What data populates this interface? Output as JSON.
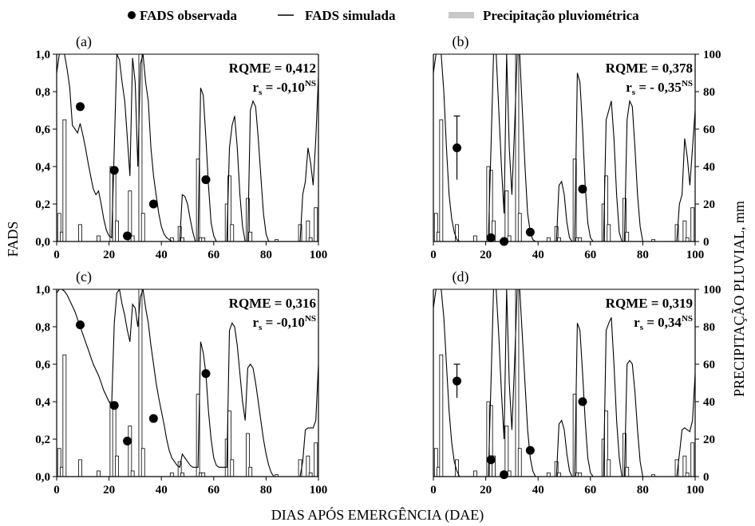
{
  "legend": {
    "observed": "FADS observada",
    "simulated": "FADS simulada",
    "precip": "Precipitação pluviométrica"
  },
  "axes": {
    "ylabel_left": "FADS",
    "ylabel_right": "PRECIPITAÇÃO PLUVIAL, mm",
    "xlabel": "DIAS APÓS EMERGÊNCIA (DAE)",
    "x_ticks": [
      "0",
      "20",
      "40",
      "60",
      "80",
      "100"
    ],
    "y_ticks_left": [
      "0,0",
      "0,2",
      "0,4",
      "0,6",
      "0,8",
      "1,0"
    ],
    "y_ticks_right": [
      "0",
      "20",
      "40",
      "60",
      "80",
      "100"
    ]
  },
  "chart_data": {
    "type": "line",
    "xlim": [
      0,
      100
    ],
    "ylim_left": [
      0,
      1.0
    ],
    "ylim_right": [
      0,
      100
    ],
    "precipitation": {
      "name": "Precipitação pluviométrica",
      "x": [
        1,
        2,
        3,
        9,
        16,
        21,
        22,
        23,
        28,
        29,
        32,
        33,
        44,
        47,
        48,
        54,
        55,
        56,
        65,
        66,
        67,
        73,
        74,
        84,
        93,
        96,
        97,
        99
      ],
      "mm": [
        15,
        5,
        65,
        9,
        3,
        40,
        38,
        11,
        27,
        3,
        100,
        15,
        2,
        8,
        2,
        44,
        2,
        2,
        20,
        35,
        9,
        23,
        5,
        1,
        9,
        11,
        2,
        18
      ]
    },
    "panels": [
      {
        "label": "(a)",
        "rqme": "RQME = 0,412",
        "rs_prefix": "r",
        "rs_sub": "s",
        "rs_value": " = -0,10",
        "rs_sup": "NS",
        "observed": {
          "x": [
            9,
            22,
            27,
            37,
            57
          ],
          "y": [
            0.72,
            0.38,
            0.03,
            0.2,
            0.33
          ],
          "err": [
            0,
            0,
            0,
            0,
            0
          ]
        },
        "simulated": {
          "x": [
            0,
            1,
            2,
            3,
            4,
            5,
            6,
            7,
            8,
            9,
            10,
            11,
            12,
            13,
            14,
            15,
            16,
            17,
            18,
            19,
            20,
            21,
            22,
            23,
            24,
            25,
            26,
            27,
            28,
            29,
            30,
            31,
            32,
            33,
            34,
            35,
            36,
            37,
            38,
            39,
            40,
            41,
            42,
            43,
            44,
            45,
            46,
            47,
            48,
            49,
            50,
            51,
            52,
            53,
            54,
            55,
            56,
            57,
            58,
            59,
            60,
            61,
            62,
            63,
            64,
            65,
            66,
            67,
            68,
            69,
            70,
            71,
            72,
            73,
            74,
            75,
            76,
            77,
            78,
            79,
            80,
            81,
            82,
            83,
            84,
            85,
            86,
            87,
            88,
            89,
            90,
            91,
            92,
            93,
            94,
            95,
            96,
            97,
            98,
            99,
            100
          ],
          "y": [
            0.9,
            1.0,
            1.0,
            1.0,
            0.92,
            0.82,
            0.62,
            0.6,
            0.58,
            0.63,
            0.57,
            0.5,
            0.42,
            0.35,
            0.28,
            0.25,
            0.27,
            0.2,
            0.12,
            0.06,
            0.03,
            0.02,
            0.5,
            1.0,
            0.97,
            0.85,
            0.75,
            0.55,
            0.35,
            0.98,
            0.85,
            0.4,
            0.95,
            1.0,
            0.85,
            0.75,
            0.5,
            0.35,
            0.25,
            0.15,
            0.08,
            0.04,
            0.02,
            0.01,
            0.0,
            0.0,
            0.0,
            0.0,
            0.25,
            0.24,
            0.2,
            0.12,
            0.05,
            0.0,
            0.0,
            0.82,
            0.78,
            0.55,
            0.3,
            0.1,
            0.03,
            0.0,
            0.0,
            0.0,
            0.0,
            0.0,
            0.5,
            0.62,
            0.67,
            0.5,
            0.25,
            0.08,
            0.0,
            0.0,
            0.7,
            0.75,
            0.72,
            0.55,
            0.35,
            0.15,
            0.04,
            0.0,
            0.0,
            0.0,
            0.0,
            0.0,
            0.0,
            0.0,
            0.0,
            0.0,
            0.0,
            0.0,
            0.0,
            0.0,
            0.25,
            0.32,
            0.5,
            0.42,
            0.3,
            0.55,
            0.88
          ]
        }
      },
      {
        "label": "(b)",
        "rqme": "RQME = 0,378",
        "rs_prefix": "r",
        "rs_sub": "s",
        "rs_value": " = - 0,35",
        "rs_sup": "NS",
        "observed": {
          "x": [
            9,
            22,
            27,
            37,
            57
          ],
          "y": [
            0.5,
            0.02,
            0.0,
            0.05,
            0.28
          ],
          "err": [
            0.17,
            0,
            0,
            0,
            0
          ]
        },
        "simulated": {
          "x": [
            0,
            1,
            2,
            3,
            4,
            5,
            6,
            7,
            8,
            9,
            10,
            11,
            12,
            13,
            14,
            15,
            16,
            17,
            18,
            19,
            20,
            21,
            22,
            23,
            24,
            25,
            26,
            27,
            28,
            29,
            30,
            31,
            32,
            33,
            34,
            35,
            36,
            37,
            38,
            39,
            40,
            41,
            42,
            43,
            44,
            45,
            46,
            47,
            48,
            49,
            50,
            51,
            52,
            53,
            54,
            55,
            56,
            57,
            58,
            59,
            60,
            61,
            62,
            63,
            64,
            65,
            66,
            67,
            68,
            69,
            70,
            71,
            72,
            73,
            74,
            75,
            76,
            77,
            78,
            79,
            80,
            81,
            82,
            83,
            84,
            85,
            86,
            87,
            88,
            89,
            90,
            91,
            92,
            93,
            94,
            95,
            96,
            97,
            98,
            99,
            100
          ],
          "y": [
            0.9,
            1.0,
            1.0,
            1.0,
            0.8,
            0.5,
            0.25,
            0.12,
            0.05,
            0.01,
            0.0,
            0.0,
            0.0,
            0.0,
            0.0,
            0.0,
            0.0,
            0.0,
            0.0,
            0.0,
            0.0,
            0.0,
            0.5,
            1.0,
            1.0,
            0.7,
            0.4,
            0.15,
            1.0,
            0.5,
            0.25,
            0.6,
            1.0,
            1.0,
            0.7,
            0.4,
            0.15,
            0.05,
            0.01,
            0.0,
            0.0,
            0.0,
            0.0,
            0.0,
            0.0,
            0.0,
            0.0,
            0.0,
            0.3,
            0.32,
            0.25,
            0.1,
            0.02,
            0.0,
            0.0,
            0.9,
            0.85,
            0.6,
            0.3,
            0.1,
            0.02,
            0.0,
            0.0,
            0.0,
            0.0,
            0.0,
            0.65,
            0.7,
            0.75,
            0.55,
            0.25,
            0.05,
            0.0,
            0.0,
            0.65,
            0.75,
            0.72,
            0.5,
            0.25,
            0.08,
            0.0,
            0.0,
            0.0,
            0.0,
            0.0,
            0.0,
            0.0,
            0.0,
            0.0,
            0.0,
            0.0,
            0.0,
            0.0,
            0.0,
            0.2,
            0.25,
            0.55,
            0.45,
            0.3,
            0.5,
            0.7
          ]
        }
      },
      {
        "label": "(c)",
        "rqme": "RQME = 0,316",
        "rs_prefix": "r",
        "rs_sub": "s",
        "rs_value": " = -0,10",
        "rs_sup": "NS",
        "observed": {
          "x": [
            9,
            22,
            27,
            37,
            57
          ],
          "y": [
            0.81,
            0.38,
            0.19,
            0.31,
            0.55
          ],
          "err": [
            0,
            0,
            0,
            0,
            0
          ]
        },
        "simulated": {
          "x": [
            0,
            1,
            2,
            3,
            4,
            5,
            6,
            7,
            8,
            9,
            10,
            11,
            12,
            13,
            14,
            15,
            16,
            17,
            18,
            19,
            20,
            21,
            22,
            23,
            24,
            25,
            26,
            27,
            28,
            29,
            30,
            31,
            32,
            33,
            34,
            35,
            36,
            37,
            38,
            39,
            40,
            41,
            42,
            43,
            44,
            45,
            46,
            47,
            48,
            49,
            50,
            51,
            52,
            53,
            54,
            55,
            56,
            57,
            58,
            59,
            60,
            61,
            62,
            63,
            64,
            65,
            66,
            67,
            68,
            69,
            70,
            71,
            72,
            73,
            74,
            75,
            76,
            77,
            78,
            79,
            80,
            81,
            82,
            83,
            84,
            85,
            86,
            87,
            88,
            89,
            90,
            91,
            92,
            93,
            94,
            95,
            96,
            97,
            98,
            99,
            100
          ],
          "y": [
            0.98,
            1.0,
            1.0,
            0.99,
            0.97,
            0.94,
            0.91,
            0.88,
            0.84,
            0.8,
            0.76,
            0.72,
            0.68,
            0.64,
            0.6,
            0.57,
            0.54,
            0.5,
            0.46,
            0.43,
            0.4,
            0.38,
            0.82,
            0.98,
            1.0,
            0.92,
            0.86,
            0.78,
            0.72,
            0.92,
            0.9,
            0.8,
            0.96,
            1.0,
            0.9,
            0.82,
            0.7,
            0.6,
            0.5,
            0.42,
            0.35,
            0.28,
            0.2,
            0.14,
            0.1,
            0.08,
            0.06,
            0.05,
            0.12,
            0.1,
            0.08,
            0.06,
            0.05,
            0.05,
            0.05,
            0.72,
            0.66,
            0.55,
            0.35,
            0.2,
            0.1,
            0.06,
            0.05,
            0.05,
            0.05,
            0.05,
            0.78,
            0.82,
            0.8,
            0.7,
            0.55,
            0.4,
            0.3,
            0.58,
            0.6,
            0.58,
            0.5,
            0.4,
            0.3,
            0.2,
            0.12,
            0.06,
            0.02,
            0.0,
            0.0,
            0.0,
            0.0,
            0.0,
            0.0,
            0.0,
            0.0,
            0.0,
            0.0,
            0.0,
            0.08,
            0.25,
            0.26,
            0.26,
            0.26,
            0.3,
            0.6
          ]
        }
      },
      {
        "label": "(d)",
        "rqme": "RQME = 0,319",
        "rs_prefix": "r",
        "rs_sub": "s",
        "rs_value": " = 0,34",
        "rs_sup": "NS",
        "observed": {
          "x": [
            9,
            22,
            27,
            37,
            57
          ],
          "y": [
            0.51,
            0.09,
            0.01,
            0.14,
            0.4
          ],
          "err": [
            0.09,
            0,
            0,
            0,
            0
          ]
        },
        "simulated": {
          "x": [
            0,
            1,
            2,
            3,
            4,
            5,
            6,
            7,
            8,
            9,
            10,
            11,
            12,
            13,
            14,
            15,
            16,
            17,
            18,
            19,
            20,
            21,
            22,
            23,
            24,
            25,
            26,
            27,
            28,
            29,
            30,
            31,
            32,
            33,
            34,
            35,
            36,
            37,
            38,
            39,
            40,
            41,
            42,
            43,
            44,
            45,
            46,
            47,
            48,
            49,
            50,
            51,
            52,
            53,
            54,
            55,
            56,
            57,
            58,
            59,
            60,
            61,
            62,
            63,
            64,
            65,
            66,
            67,
            68,
            69,
            70,
            71,
            72,
            73,
            74,
            75,
            76,
            77,
            78,
            79,
            80,
            81,
            82,
            83,
            84,
            85,
            86,
            87,
            88,
            89,
            90,
            91,
            92,
            93,
            94,
            95,
            96,
            97,
            98,
            99,
            100
          ],
          "y": [
            0.9,
            1.0,
            1.0,
            1.0,
            0.85,
            0.6,
            0.35,
            0.18,
            0.08,
            0.03,
            0.0,
            0.0,
            0.0,
            0.0,
            0.0,
            0.0,
            0.0,
            0.0,
            0.0,
            0.0,
            0.0,
            0.0,
            0.5,
            1.0,
            1.0,
            0.75,
            0.45,
            0.2,
            1.0,
            0.5,
            0.25,
            0.6,
            1.0,
            1.0,
            0.75,
            0.5,
            0.25,
            0.1,
            0.03,
            0.0,
            0.0,
            0.0,
            0.0,
            0.0,
            0.0,
            0.0,
            0.0,
            0.0,
            0.28,
            0.3,
            0.25,
            0.12,
            0.03,
            0.0,
            0.0,
            0.82,
            0.78,
            0.55,
            0.3,
            0.1,
            0.02,
            0.0,
            0.0,
            0.0,
            0.0,
            0.0,
            0.78,
            0.82,
            0.85,
            0.6,
            0.3,
            0.1,
            0.0,
            0.0,
            0.6,
            0.62,
            0.6,
            0.45,
            0.25,
            0.08,
            0.0,
            0.0,
            0.0,
            0.0,
            0.0,
            0.0,
            0.0,
            0.0,
            0.0,
            0.0,
            0.0,
            0.0,
            0.0,
            0.0,
            0.12,
            0.25,
            0.26,
            0.25,
            0.24,
            0.3,
            0.55
          ]
        }
      }
    ]
  }
}
